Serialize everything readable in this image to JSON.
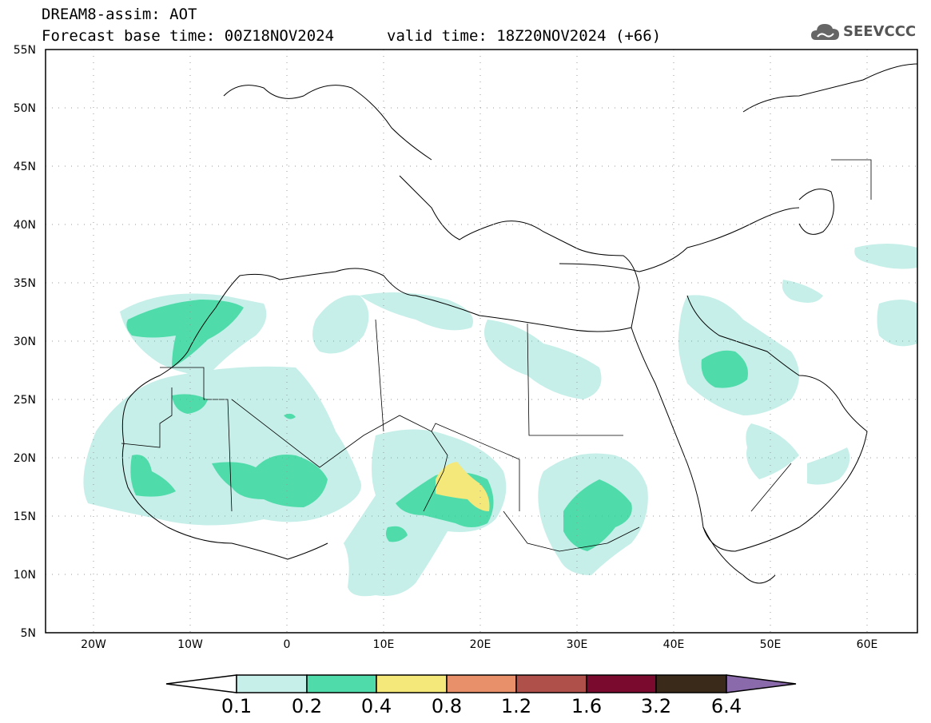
{
  "header": {
    "title_line1": "DREAM8-assim: AOT",
    "title_line2": "Forecast base time: 00Z18NOV2024",
    "valid_time": "valid time: 18Z20NOV2024 (+66)",
    "logo_text": "SEEVCCC"
  },
  "map": {
    "extent": {
      "lon_min": -25,
      "lon_max": 65,
      "lat_min": 5,
      "lat_max": 55
    },
    "lat_labels": [
      "55N",
      "50N",
      "45N",
      "40N",
      "35N",
      "30N",
      "25N",
      "20N",
      "15N",
      "10N",
      "5N"
    ],
    "lon_labels": [
      "20W",
      "10W",
      "0",
      "10E",
      "20E",
      "30E",
      "40E",
      "50E",
      "60E"
    ],
    "variable": "AOT"
  },
  "colorbar": {
    "levels": [
      "0.1",
      "0.2",
      "0.4",
      "0.8",
      "1.2",
      "1.6",
      "3.2",
      "6.4"
    ],
    "colors": [
      "#c6efe9",
      "#50dcaa",
      "#f5e87a",
      "#e8906a",
      "#b0504a",
      "#7a0a2e",
      "#3a2a1a",
      "#8a6aaa"
    ]
  }
}
